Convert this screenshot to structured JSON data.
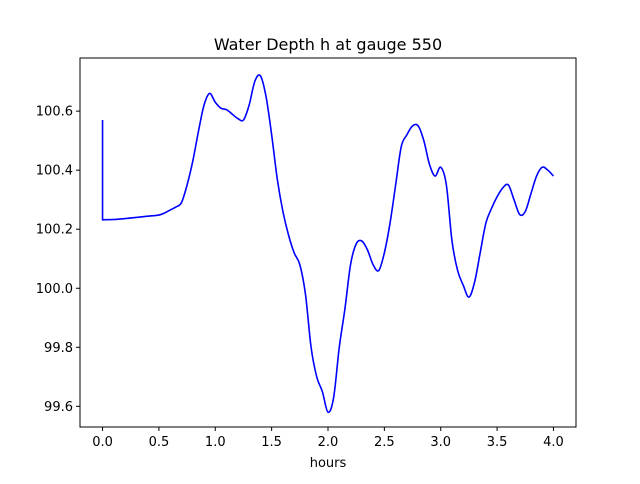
{
  "chart_data": {
    "type": "line",
    "title": "Water Depth h at gauge 550",
    "xlabel": "hours",
    "ylabel": "",
    "xlim": [
      -0.2,
      4.2
    ],
    "ylim": [
      99.53,
      100.78
    ],
    "grid": false,
    "x_ticks": [
      0.0,
      0.5,
      1.0,
      1.5,
      2.0,
      2.5,
      3.0,
      3.5,
      4.0
    ],
    "x_tick_labels": [
      "0.0",
      "0.5",
      "1.0",
      "1.5",
      "2.0",
      "2.5",
      "3.0",
      "3.5",
      "4.0"
    ],
    "y_ticks": [
      99.6,
      99.8,
      100.0,
      100.2,
      100.4,
      100.6
    ],
    "y_tick_labels": [
      "99.6",
      "99.8",
      "100.0",
      "100.2",
      "100.4",
      "100.6"
    ],
    "series": [
      {
        "color": "#0000ff",
        "x": [
          0.0,
          0.0,
          0.1,
          0.2,
          0.3,
          0.4,
          0.5,
          0.55,
          0.6,
          0.65,
          0.7,
          0.75,
          0.8,
          0.85,
          0.9,
          0.95,
          1.0,
          1.05,
          1.1,
          1.15,
          1.2,
          1.25,
          1.3,
          1.35,
          1.4,
          1.45,
          1.5,
          1.55,
          1.6,
          1.65,
          1.7,
          1.75,
          1.8,
          1.85,
          1.9,
          1.95,
          2.0,
          2.05,
          2.1,
          2.15,
          2.2,
          2.25,
          2.3,
          2.35,
          2.4,
          2.45,
          2.5,
          2.55,
          2.6,
          2.65,
          2.7,
          2.75,
          2.8,
          2.85,
          2.9,
          2.95,
          3.0,
          3.05,
          3.1,
          3.15,
          3.2,
          3.25,
          3.3,
          3.35,
          3.4,
          3.45,
          3.5,
          3.55,
          3.6,
          3.65,
          3.7,
          3.75,
          3.8,
          3.85,
          3.9,
          3.95,
          4.0
        ],
        "y": [
          100.57,
          100.232,
          100.233,
          100.236,
          100.24,
          100.244,
          100.248,
          100.255,
          100.265,
          100.275,
          100.29,
          100.35,
          100.43,
          100.53,
          100.62,
          100.66,
          100.63,
          100.61,
          100.605,
          100.59,
          100.575,
          100.57,
          100.62,
          100.7,
          100.72,
          100.65,
          100.52,
          100.37,
          100.26,
          100.18,
          100.12,
          100.08,
          99.98,
          99.8,
          99.7,
          99.65,
          99.58,
          99.63,
          99.8,
          99.93,
          100.08,
          100.15,
          100.16,
          100.13,
          100.08,
          100.06,
          100.12,
          100.22,
          100.35,
          100.48,
          100.52,
          100.55,
          100.55,
          100.5,
          100.42,
          100.38,
          100.41,
          100.35,
          100.16,
          100.06,
          100.01,
          99.97,
          100.02,
          100.12,
          100.22,
          100.27,
          100.31,
          100.34,
          100.35,
          100.3,
          100.25,
          100.26,
          100.32,
          100.38,
          100.41,
          100.4,
          100.38
        ]
      }
    ]
  }
}
